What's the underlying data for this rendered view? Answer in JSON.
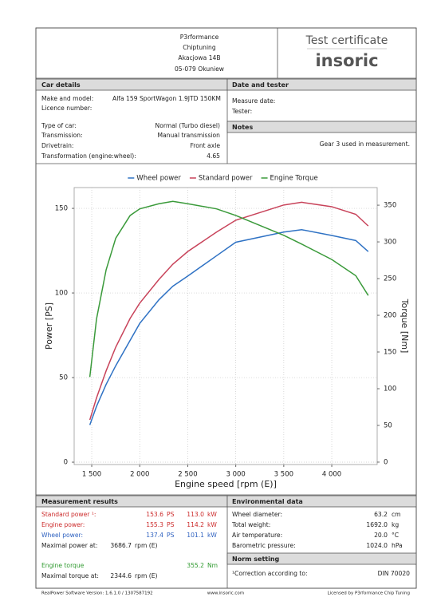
{
  "header": {
    "company": [
      "P3rformance",
      "Chiptuning",
      "Akacjowa 14B",
      "05-079 Okuniew"
    ],
    "title": "Test certificate",
    "logo": "insoric"
  },
  "car_details": {
    "heading": "Car details",
    "rows": [
      [
        "Make and model:",
        "Alfa 159 SportWagon 1.9JTD 150KM"
      ],
      [
        "Licence number:"
      ],
      [
        "Type of car:",
        "Normal (Turbo diesel)"
      ],
      [
        "Transmission:",
        "Manual transmission"
      ],
      [
        "Drivetrain:",
        "Front axle"
      ],
      [
        "Transformation (engine:wheel):",
        "4.65"
      ]
    ]
  },
  "date_tester": {
    "heading": "Date and tester",
    "rows": [
      "Measure date:",
      "Tester:"
    ]
  },
  "notes": {
    "heading": "Notes",
    "text": "Gear 3 used in measurement."
  },
  "chart_data": {
    "type": "line",
    "xlabel": "Engine speed [rpm (E)]",
    "ylabel": "Power [PS]",
    "y2label": "Torque [Nm]",
    "x": [
      1480,
      1550,
      1650,
      1750,
      1900,
      2000,
      2200,
      2344.6,
      2500,
      2800,
      3000,
      3500,
      3686.7,
      4000,
      4250,
      4380
    ],
    "series": [
      {
        "name": "Wheel power",
        "color": "#2f72c4",
        "values": [
          22,
          33,
          46,
          57,
          72,
          82,
          96,
          104,
          110,
          122,
          130,
          136,
          137.4,
          134,
          131,
          124.5
        ]
      },
      {
        "name": "Standard power",
        "color": "#c8435a",
        "values": [
          25,
          38,
          54,
          68,
          85,
          94,
          108,
          117,
          124.5,
          136,
          143,
          152,
          153.6,
          151,
          146.5,
          139.6
        ]
      },
      {
        "name": "Engine Torque",
        "color": "#3a9a3a",
        "axis": "y2",
        "values": [
          116,
          195,
          262,
          305,
          336,
          345,
          352,
          355.2,
          352,
          345,
          336,
          309,
          297,
          276,
          254,
          227
        ]
      }
    ],
    "xlim": [
      1317,
      4473
    ],
    "xticks": [
      {
        "value": 1500,
        "label": "1 500"
      },
      {
        "value": 2000,
        "label": "2 000"
      },
      {
        "value": 2500,
        "label": "2 500"
      },
      {
        "value": 3000,
        "label": "3 000"
      },
      {
        "value": 3500,
        "label": "3 500"
      },
      {
        "value": 4000,
        "label": "4 000"
      }
    ],
    "ylim": [
      -1.4,
      162.3
    ],
    "yticks": [
      0,
      50,
      100,
      150
    ],
    "y2lim": [
      -3.3,
      374
    ],
    "y2ticks": [
      0,
      50,
      100,
      150,
      200,
      250,
      300,
      350
    ],
    "grid": true,
    "legend": "top"
  },
  "measurement_results": {
    "heading": "Measurement results",
    "rows": [
      [
        "Standard power ¹:",
        "153.6",
        "PS",
        "113.0",
        "kW"
      ],
      [
        "Engine power:",
        "155.3",
        "PS",
        "114.2",
        "kW"
      ],
      [
        "Wheel power:",
        "137.4",
        "PS",
        "101.1",
        "kW"
      ],
      [
        "Maximal power at:",
        "3686.7",
        "rpm (E)"
      ],
      [
        "Engine torque",
        "355.2",
        "Nm"
      ],
      [
        "Maximal torque at:",
        "2344.6",
        "rpm (E)"
      ]
    ]
  },
  "environmental_data": {
    "heading": "Environmental data",
    "rows": [
      [
        "Wheel diameter:",
        "63.2",
        "cm"
      ],
      [
        "Total weight:",
        "1692.0",
        "kg"
      ],
      [
        "Air temperature:",
        "20.0",
        "°C"
      ],
      [
        "Barometric pressure:",
        "1024.0",
        "hPa"
      ]
    ]
  },
  "norm_setting": {
    "heading": "Norm setting",
    "rows": [
      [
        "¹Correction according to:",
        "DIN 70020"
      ]
    ]
  },
  "footer": [
    "RealPower Software Version: 1.6.1.0 / 1307587192",
    "www.insoric.com",
    "Licensed by P3rformance Chip Tuning"
  ]
}
